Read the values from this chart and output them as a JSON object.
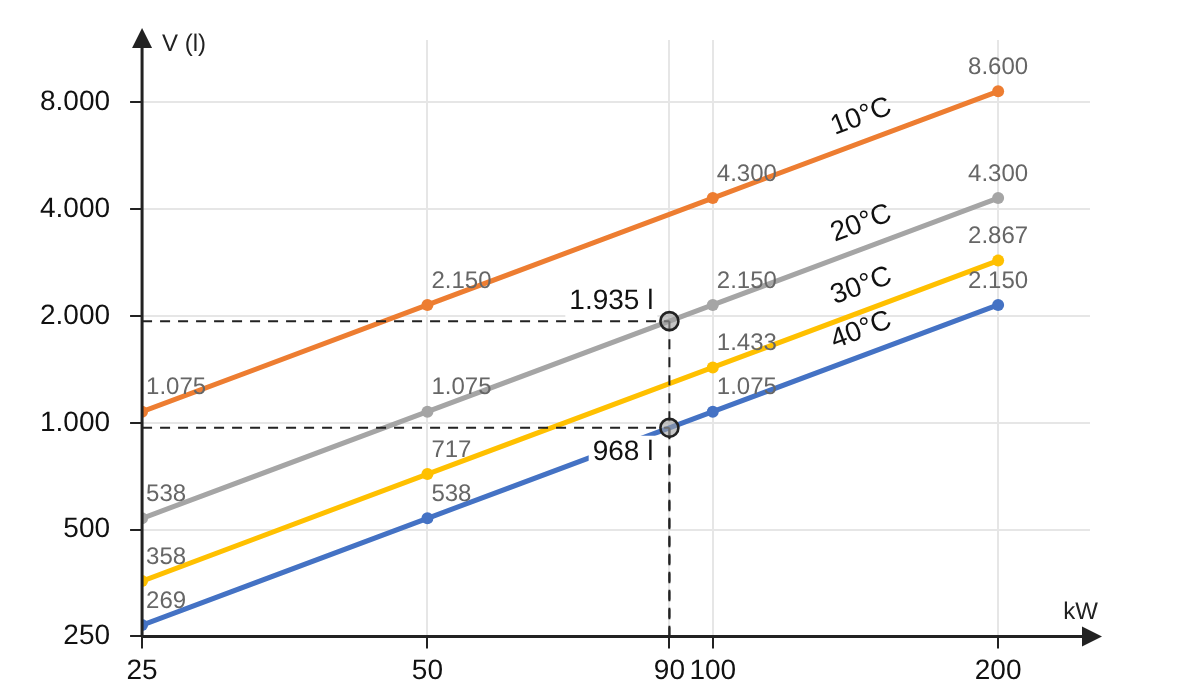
{
  "chart_data": {
    "type": "line",
    "xlabel": "kW",
    "ylabel": "V (l)",
    "log": "xy",
    "grid": true,
    "legend": false,
    "marker": "circle",
    "line_style": "solid",
    "x": [
      25,
      50,
      100,
      200
    ],
    "xlim": [
      25,
      250
    ],
    "xticks": [
      25,
      50,
      90,
      100,
      200
    ],
    "ylim": [
      250,
      12000
    ],
    "yticks": [
      250,
      500,
      {
        "value": 1000,
        "label": "1.000"
      },
      {
        "value": 2000,
        "label": "2.000"
      },
      {
        "value": 4000,
        "label": "4.000"
      },
      {
        "value": 8000,
        "label": "8.000"
      }
    ],
    "series": [
      {
        "name": "10°C",
        "color": "#ed7d31",
        "values": [
          1075,
          2150,
          4300,
          8600
        ],
        "value_labels": [
          "1.075",
          "2.150",
          "4.300",
          "8.600"
        ]
      },
      {
        "name": "20°C",
        "color": "#a5a5a5",
        "values": [
          538,
          1075,
          2150,
          4300
        ],
        "value_labels": [
          "538",
          "1.075",
          "2.150",
          "4.300"
        ]
      },
      {
        "name": "30°C",
        "color": "#ffc000",
        "values": [
          358,
          717,
          1433,
          2867
        ],
        "value_labels": [
          "358",
          "717",
          "1.433",
          "2.867"
        ]
      },
      {
        "name": "40°C",
        "color": "#4472c4",
        "values": [
          269,
          538,
          1075,
          2150
        ],
        "value_labels": [
          "269",
          "538",
          "1.075",
          "2.150"
        ]
      }
    ],
    "annotations": [
      {
        "text": "1.935 l",
        "x": 90,
        "y": 1935
      },
      {
        "text": "968 l",
        "x": 90,
        "y": 968
      }
    ]
  }
}
